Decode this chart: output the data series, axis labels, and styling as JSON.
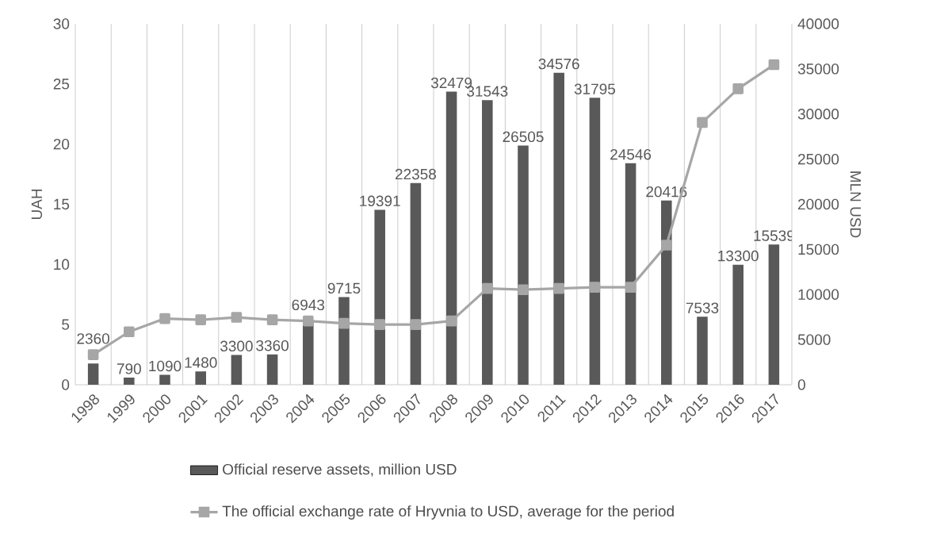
{
  "chart_data": {
    "type": "bar",
    "categories": [
      "1998",
      "1999",
      "2000",
      "2001",
      "2002",
      "2003",
      "2004",
      "2005",
      "2006",
      "2007",
      "2008",
      "2009",
      "2010",
      "2011",
      "2012",
      "2013",
      "2014",
      "2015",
      "2016",
      "2017"
    ],
    "series": [
      {
        "name": "Official reserve assets, million USD",
        "axis": "y2",
        "color": "#595959",
        "values": [
          2360,
          790,
          1090,
          1480,
          3300,
          3360,
          6943,
          9715,
          19391,
          22358,
          32479,
          31543,
          26505,
          34576,
          31795,
          24546,
          20416,
          7533,
          13300,
          15539
        ],
        "value_labels": [
          "2360",
          "790",
          "1090",
          "1480",
          "3300",
          "3360",
          "6943",
          "9715",
          "19391",
          "22358",
          "32479",
          "31543",
          "26505",
          "34576",
          "31795",
          "24546",
          "20416",
          "7533",
          "13300",
          "15539"
        ]
      },
      {
        "name": "The official exchange rate of Hryvnia to USD, average for the period",
        "type": "line",
        "axis": "y",
        "color": "#a6a6a6",
        "marker": "square",
        "line_style": "solid",
        "values": [
          2.5,
          4.4,
          5.5,
          5.4,
          5.6,
          5.4,
          5.3,
          5.1,
          5.0,
          5.0,
          5.3,
          8.0,
          7.9,
          8.0,
          8.1,
          8.1,
          11.6,
          21.8,
          24.6,
          26.6
        ]
      }
    ],
    "ylabel": "UAH",
    "y2label": "MLN USD",
    "ylim": [
      0,
      30
    ],
    "yticks": [
      0,
      5,
      10,
      15,
      20,
      25,
      30
    ],
    "y2lim": [
      0,
      40000
    ],
    "y2ticks": [
      0,
      5000,
      10000,
      15000,
      20000,
      25000,
      30000,
      35000,
      40000
    ],
    "grid": "x",
    "legend": "bottom"
  }
}
